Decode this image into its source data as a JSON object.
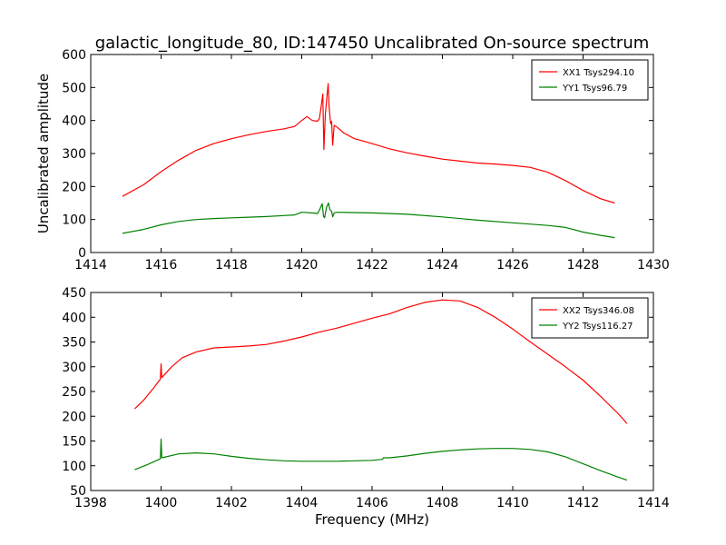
{
  "figure": {
    "title": "galactic_longitude_80, ID:147450 Uncalibrated On-source spectrum",
    "ylabel": "Uncalibrated amplitude",
    "xlabel": "Frequency (MHz)"
  },
  "colors": {
    "xx": "#ff0000",
    "yy": "#008000"
  },
  "chart_data": [
    {
      "type": "line",
      "xlim": [
        1414,
        1430
      ],
      "ylim": [
        0,
        600
      ],
      "xticks": [
        "1414",
        "1416",
        "1418",
        "1420",
        "1422",
        "1424",
        "1426",
        "1428",
        "1430"
      ],
      "yticks": [
        "0",
        "100",
        "200",
        "300",
        "400",
        "500",
        "600"
      ],
      "legend_position": "top-right",
      "series": [
        {
          "name": "XX1 Tsys294.10",
          "color": "#ff0000",
          "points": [
            [
              1414.9,
              170
            ],
            [
              1415.5,
              205
            ],
            [
              1416,
              245
            ],
            [
              1416.5,
              280
            ],
            [
              1417,
              310
            ],
            [
              1417.5,
              330
            ],
            [
              1418,
              345
            ],
            [
              1418.5,
              357
            ],
            [
              1419,
              367
            ],
            [
              1419.5,
              375
            ],
            [
              1419.8,
              382
            ],
            [
              1420.0,
              400
            ],
            [
              1420.15,
              412
            ],
            [
              1420.3,
              400
            ],
            [
              1420.45,
              398
            ],
            [
              1420.5,
              405
            ],
            [
              1420.55,
              440
            ],
            [
              1420.6,
              480
            ],
            [
              1420.63,
              312
            ],
            [
              1420.67,
              420
            ],
            [
              1420.75,
              512
            ],
            [
              1420.78,
              440
            ],
            [
              1420.82,
              390
            ],
            [
              1420.85,
              398
            ],
            [
              1420.88,
              325
            ],
            [
              1420.92,
              385
            ],
            [
              1421.0,
              380
            ],
            [
              1421.2,
              362
            ],
            [
              1421.5,
              345
            ],
            [
              1422,
              330
            ],
            [
              1422.5,
              314
            ],
            [
              1423,
              302
            ],
            [
              1423.5,
              292
            ],
            [
              1424,
              283
            ],
            [
              1424.5,
              277
            ],
            [
              1425,
              271
            ],
            [
              1425.5,
              268
            ],
            [
              1426,
              264
            ],
            [
              1426.5,
              258
            ],
            [
              1427,
              243
            ],
            [
              1427.5,
              218
            ],
            [
              1428,
              188
            ],
            [
              1428.5,
              163
            ],
            [
              1428.9,
              150
            ]
          ]
        },
        {
          "name": "YY1 Tsys96.79",
          "color": "#008000",
          "points": [
            [
              1414.9,
              58
            ],
            [
              1415.5,
              70
            ],
            [
              1416,
              84
            ],
            [
              1416.5,
              94
            ],
            [
              1417,
              100
            ],
            [
              1417.5,
              103
            ],
            [
              1418,
              105
            ],
            [
              1418.5,
              107
            ],
            [
              1419,
              109
            ],
            [
              1419.5,
              112
            ],
            [
              1419.8,
              114
            ],
            [
              1420.0,
              122
            ],
            [
              1420.3,
              120
            ],
            [
              1420.45,
              118
            ],
            [
              1420.5,
              128
            ],
            [
              1420.58,
              148
            ],
            [
              1420.62,
              110
            ],
            [
              1420.65,
              105
            ],
            [
              1420.7,
              135
            ],
            [
              1420.76,
              150
            ],
            [
              1420.8,
              130
            ],
            [
              1420.85,
              125
            ],
            [
              1420.88,
              108
            ],
            [
              1420.92,
              120
            ],
            [
              1421.0,
              122
            ],
            [
              1422,
              120
            ],
            [
              1423,
              116
            ],
            [
              1424,
              108
            ],
            [
              1425,
              98
            ],
            [
              1426,
              90
            ],
            [
              1427,
              82
            ],
            [
              1427.5,
              76
            ],
            [
              1428,
              62
            ],
            [
              1428.5,
              52
            ],
            [
              1428.9,
              45
            ]
          ]
        }
      ]
    },
    {
      "type": "line",
      "xlim": [
        1398,
        1414
      ],
      "ylim": [
        50,
        450
      ],
      "xticks": [
        "1398",
        "1400",
        "1402",
        "1404",
        "1406",
        "1408",
        "1410",
        "1412",
        "1414"
      ],
      "yticks": [
        "50",
        "100",
        "150",
        "200",
        "250",
        "300",
        "350",
        "400",
        "450"
      ],
      "legend_position": "top-right",
      "series": [
        {
          "name": "XX2 Tsys346.08",
          "color": "#ff0000",
          "points": [
            [
              1399.25,
              215
            ],
            [
              1399.5,
              232
            ],
            [
              1399.8,
              258
            ],
            [
              1399.98,
              275
            ],
            [
              1400.0,
              306
            ],
            [
              1400.02,
              278
            ],
            [
              1400.3,
              300
            ],
            [
              1400.6,
              318
            ],
            [
              1401,
              330
            ],
            [
              1401.5,
              338
            ],
            [
              1402,
              340
            ],
            [
              1402.5,
              342
            ],
            [
              1403,
              345
            ],
            [
              1403.5,
              352
            ],
            [
              1404,
              360
            ],
            [
              1404.5,
              370
            ],
            [
              1405,
              378
            ],
            [
              1405.5,
              388
            ],
            [
              1406,
              398
            ],
            [
              1406.5,
              407
            ],
            [
              1407,
              420
            ],
            [
              1407.5,
              430
            ],
            [
              1408,
              435
            ],
            [
              1408.5,
              433
            ],
            [
              1409,
              420
            ],
            [
              1409.5,
              400
            ],
            [
              1410,
              376
            ],
            [
              1410.5,
              350
            ],
            [
              1411,
              325
            ],
            [
              1411.5,
              300
            ],
            [
              1412,
              273
            ],
            [
              1412.5,
              240
            ],
            [
              1413,
              205
            ],
            [
              1413.25,
              185
            ]
          ]
        },
        {
          "name": "YY2 Tsys116.27",
          "color": "#008000",
          "points": [
            [
              1399.25,
              92
            ],
            [
              1399.6,
              102
            ],
            [
              1399.98,
              114
            ],
            [
              1400.0,
              154
            ],
            [
              1400.02,
              116
            ],
            [
              1400.5,
              124
            ],
            [
              1401,
              126
            ],
            [
              1401.5,
              124
            ],
            [
              1402,
              119
            ],
            [
              1402.5,
              115
            ],
            [
              1403,
              112
            ],
            [
              1403.5,
              110
            ],
            [
              1404,
              109
            ],
            [
              1404.5,
              109
            ],
            [
              1405,
              109
            ],
            [
              1405.5,
              110
            ],
            [
              1406,
              111
            ],
            [
              1406.3,
              113
            ],
            [
              1406.32,
              116
            ],
            [
              1406.5,
              116
            ],
            [
              1407,
              120
            ],
            [
              1407.5,
              125
            ],
            [
              1408,
              129
            ],
            [
              1408.5,
              132
            ],
            [
              1409,
              134
            ],
            [
              1409.5,
              135
            ],
            [
              1410,
              135
            ],
            [
              1410.5,
              133
            ],
            [
              1411,
              128
            ],
            [
              1411.5,
              118
            ],
            [
              1412,
              104
            ],
            [
              1412.5,
              90
            ],
            [
              1413,
              77
            ],
            [
              1413.25,
              71
            ]
          ]
        }
      ]
    }
  ]
}
